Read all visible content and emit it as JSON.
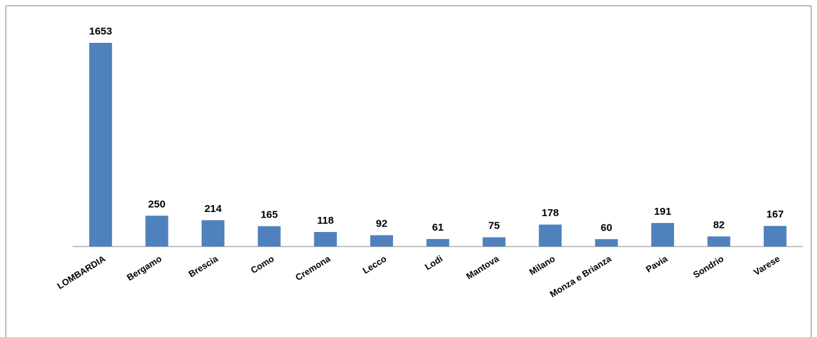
{
  "chart_data": {
    "type": "bar",
    "categories": [
      "LOMBARDIA",
      "Bergamo",
      "Brescia",
      "Como",
      "Cremona",
      "Lecco",
      "Lodi",
      "Mantova",
      "Milano",
      "Monza e Brianza",
      "Pavia",
      "Sondrio",
      "Varese"
    ],
    "values": [
      1653,
      250,
      214,
      165,
      118,
      92,
      61,
      75,
      178,
      60,
      191,
      82,
      167
    ],
    "color": "#4f81bd"
  }
}
